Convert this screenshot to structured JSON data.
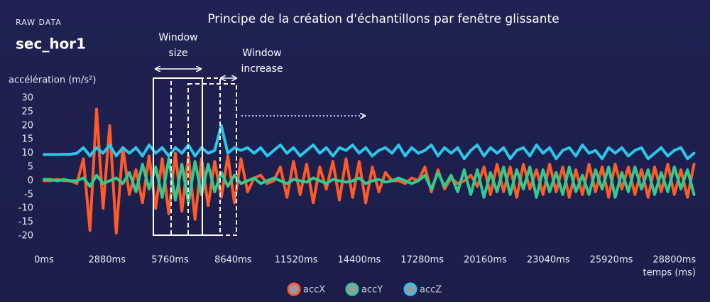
{
  "chart_data": {
    "type": "line",
    "section_label": "RAW DATA",
    "subtitle": "sec_hor1",
    "title": "Principe de la création d'échantillons par fenêtre glissante",
    "y_label": "accélération (m/s²)",
    "x_label": "temps (ms)",
    "annotations": [
      "Window size",
      "Window increase"
    ],
    "xlim": [
      0,
      29800
    ],
    "ylim": [
      -20,
      30
    ],
    "xticks": [
      {
        "value": 0,
        "label": "0ms"
      },
      {
        "value": 2880,
        "label": "2880ms"
      },
      {
        "value": 5760,
        "label": "5760ms"
      },
      {
        "value": 8640,
        "label": "8640ms"
      },
      {
        "value": 11520,
        "label": "11520ms"
      },
      {
        "value": 14400,
        "label": "14400ms"
      },
      {
        "value": 17280,
        "label": "17280ms"
      },
      {
        "value": 20160,
        "label": "20160ms"
      },
      {
        "value": 23040,
        "label": "23040ms"
      },
      {
        "value": 25920,
        "label": "25920ms"
      },
      {
        "value": 28800,
        "label": "28800ms"
      }
    ],
    "yticks": [
      -20,
      -15,
      -10,
      -5,
      0,
      5,
      10,
      15,
      20,
      25,
      30
    ],
    "grid": false,
    "legend": "bottom",
    "x": [
      0,
      300,
      600,
      900,
      1200,
      1500,
      1800,
      2100,
      2400,
      2700,
      3000,
      3300,
      3600,
      3900,
      4200,
      4500,
      4800,
      5100,
      5400,
      5700,
      6000,
      6300,
      6600,
      6900,
      7200,
      7500,
      7800,
      8100,
      8400,
      8700,
      9000,
      9300,
      9600,
      9900,
      10200,
      10500,
      10800,
      11100,
      11400,
      11700,
      12000,
      12300,
      12600,
      12900,
      13200,
      13500,
      13800,
      14100,
      14400,
      14700,
      15000,
      15300,
      15600,
      15900,
      16200,
      16500,
      16800,
      17100,
      17400,
      17700,
      18000,
      18300,
      18600,
      18900,
      19200,
      19500,
      19800,
      20100,
      20400,
      20700,
      21000,
      21300,
      21600,
      21900,
      22200,
      22500,
      22800,
      23100,
      23400,
      23700,
      24000,
      24300,
      24600,
      24900,
      25200,
      25500,
      25800,
      26100,
      26400,
      26700,
      27000,
      27300,
      27600,
      27900,
      28200,
      28500,
      28800,
      29100,
      29400,
      29700
    ],
    "series": [
      {
        "name": "accX",
        "color": "#ff5a28",
        "values": [
          0,
          0,
          0.5,
          0,
          0,
          -1,
          8,
          -18,
          26,
          -10,
          20,
          -19,
          12,
          -5,
          4,
          -8,
          9,
          -10,
          8,
          -12,
          10,
          -11,
          9,
          -14,
          8,
          -9,
          7,
          -6,
          9,
          -8,
          8,
          -4,
          1,
          2,
          -1,
          0,
          5,
          -6,
          7,
          -5,
          6,
          -8,
          5,
          -3,
          7,
          -7,
          8,
          -6,
          7,
          -8,
          5,
          -4,
          3,
          0,
          0,
          -1,
          1,
          0,
          5,
          -4,
          4,
          -3,
          1,
          -1,
          0,
          2,
          -2,
          5,
          -5,
          6,
          -4,
          5,
          -6,
          6,
          -3,
          4,
          -5,
          6,
          -4,
          5,
          -6,
          4,
          -5,
          6,
          -4,
          5,
          -6,
          6,
          -3,
          5,
          -5,
          4,
          -6,
          5,
          -4,
          6,
          -5,
          4,
          -6,
          6
        ]
      },
      {
        "name": "accY",
        "color": "#2ecc8f",
        "values": [
          0.5,
          0.5,
          0,
          0.5,
          0,
          0,
          1,
          -2,
          2,
          -1,
          0,
          1,
          -1,
          3,
          -4,
          6,
          -3,
          5,
          -6,
          8,
          -7,
          6,
          -8,
          7,
          -5,
          6,
          -4,
          3,
          -2,
          2,
          -1,
          0,
          1,
          -1,
          0,
          1,
          0,
          -1,
          0.5,
          0,
          -0.5,
          1,
          0,
          -1,
          0.5,
          0,
          -0.5,
          0,
          1,
          -1,
          0,
          0.5,
          -0.5,
          0,
          1,
          0,
          -1,
          0,
          2,
          -3,
          3,
          -2,
          2,
          -4,
          4,
          -5,
          4,
          -6,
          3,
          -4,
          5,
          -5,
          4,
          -3,
          5,
          -6,
          4,
          -4,
          3,
          -5,
          5,
          -4,
          2,
          -5,
          4,
          -3,
          5,
          -6,
          3,
          -4,
          5,
          -3,
          4,
          -5,
          3,
          -4,
          5,
          -3,
          4,
          -5
        ]
      },
      {
        "name": "accZ",
        "color": "#2cc6ea",
        "values": [
          9.5,
          9.5,
          9.5,
          9.6,
          9.6,
          10,
          12,
          9,
          12,
          10,
          13,
          9,
          12,
          10,
          12,
          9,
          13,
          10,
          12,
          9,
          12,
          10,
          13,
          9,
          12,
          10,
          11,
          20,
          10,
          12,
          11,
          12,
          10,
          12,
          9,
          11,
          13,
          10,
          12,
          9,
          11,
          13,
          10,
          12,
          9,
          12,
          11,
          13,
          10,
          12,
          9,
          11,
          12,
          10,
          13,
          9,
          12,
          10,
          11,
          13,
          9,
          12,
          10,
          12,
          8,
          11,
          13,
          9,
          12,
          10,
          12,
          8,
          11,
          12,
          9,
          13,
          10,
          12,
          8,
          11,
          12,
          9,
          13,
          10,
          11,
          8,
          12,
          10,
          12,
          9,
          11,
          12,
          8,
          10,
          12,
          9,
          11,
          12,
          8,
          10
        ]
      }
    ]
  }
}
